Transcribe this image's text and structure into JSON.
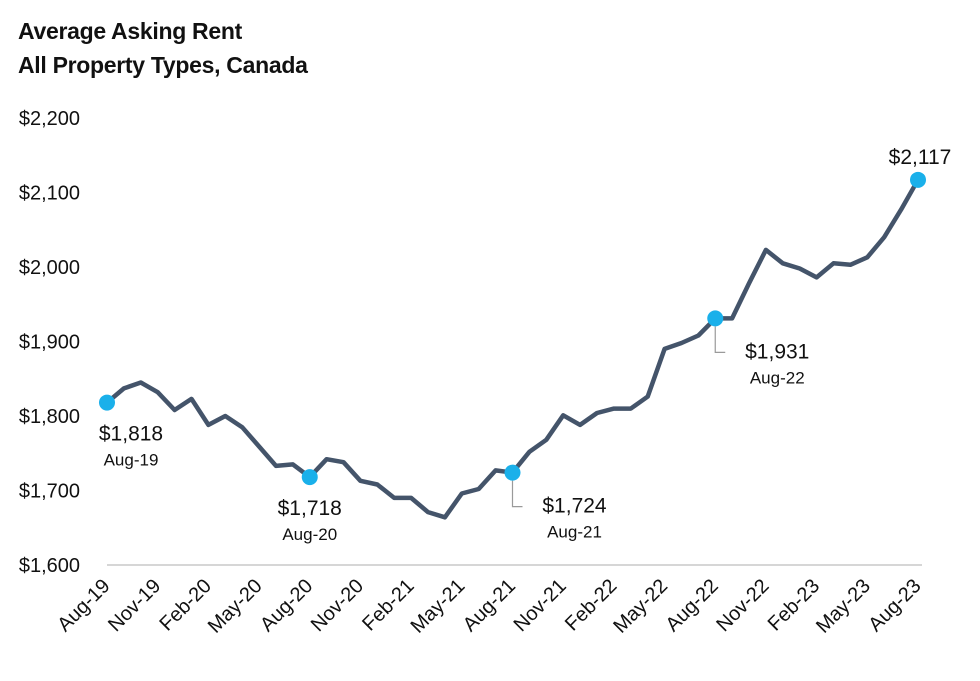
{
  "chart_data": {
    "type": "line",
    "title": "Average Asking Rent",
    "subtitle": "All Property Types, Canada",
    "xlabel": "",
    "ylabel": "",
    "ylim": [
      1600,
      2200
    ],
    "yticks": [
      "$1,600",
      "$1,700",
      "$1,800",
      "$1,900",
      "$2,000",
      "$2,100",
      "$2,200"
    ],
    "ytick_values": [
      1600,
      1700,
      1800,
      1900,
      2000,
      2100,
      2200
    ],
    "xtick_labels": [
      "Aug-19",
      "Nov-19",
      "Feb-20",
      "May-20",
      "Aug-20",
      "Nov-20",
      "Feb-21",
      "May-21",
      "Aug-21",
      "Nov-21",
      "Feb-22",
      "May-22",
      "Aug-22",
      "Nov-22",
      "Feb-23",
      "May-23",
      "Aug-23"
    ],
    "x": [
      "Aug-19",
      "Sep-19",
      "Oct-19",
      "Nov-19",
      "Dec-19",
      "Jan-20",
      "Feb-20",
      "Mar-20",
      "Apr-20",
      "May-20",
      "Jun-20",
      "Jul-20",
      "Aug-20",
      "Sep-20",
      "Oct-20",
      "Nov-20",
      "Dec-20",
      "Jan-21",
      "Feb-21",
      "Mar-21",
      "Apr-21",
      "May-21",
      "Jun-21",
      "Jul-21",
      "Aug-21",
      "Sep-21",
      "Oct-21",
      "Nov-21",
      "Dec-21",
      "Jan-22",
      "Feb-22",
      "Mar-22",
      "Apr-22",
      "May-22",
      "Jun-22",
      "Jul-22",
      "Aug-22",
      "Sep-22",
      "Oct-22",
      "Nov-22",
      "Dec-22",
      "Jan-23",
      "Feb-23",
      "Mar-23",
      "Apr-23",
      "May-23",
      "Jun-23",
      "Jul-23",
      "Aug-23"
    ],
    "series": [
      {
        "color": "#44546a",
        "values": [
          1818,
          1837,
          1845,
          1832,
          1808,
          1823,
          1788,
          1800,
          1785,
          1759,
          1733,
          1735,
          1718,
          1742,
          1738,
          1713,
          1708,
          1690,
          1690,
          1671,
          1664,
          1696,
          1702,
          1727,
          1724,
          1752,
          1768,
          1801,
          1788,
          1804,
          1810,
          1810,
          1826,
          1890,
          1898,
          1908,
          1931,
          1931,
          1978,
          2023,
          2005,
          1998,
          1986,
          2005,
          2003,
          2013,
          2040,
          2077,
          2117
        ]
      }
    ],
    "annotations": [
      {
        "index": 0,
        "value": "$1,818",
        "date": "Aug-19",
        "position": "below"
      },
      {
        "index": 12,
        "value": "$1,718",
        "date": "Aug-20",
        "position": "below"
      },
      {
        "index": 24,
        "value": "$1,724",
        "date": "Aug-21",
        "position": "below-right"
      },
      {
        "index": 36,
        "value": "$1,931",
        "date": "Aug-22",
        "position": "below-right"
      },
      {
        "index": 48,
        "value": "$2,117",
        "date": "",
        "position": "above"
      }
    ],
    "marker_color": "#1ab0ea",
    "grid": false,
    "legend": "none"
  }
}
